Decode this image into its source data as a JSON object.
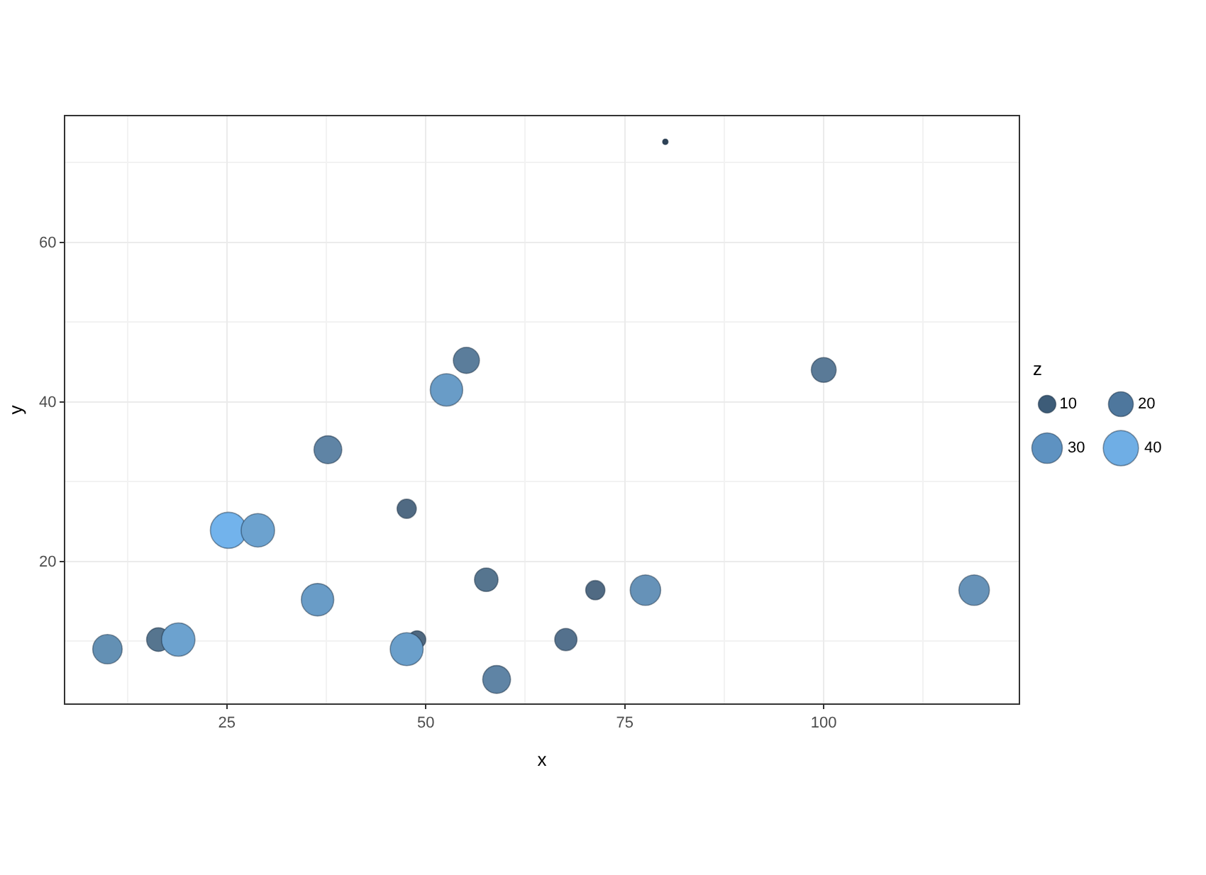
{
  "chart_data": {
    "type": "bubble",
    "xlabel": "x",
    "ylabel": "y",
    "legend_title": "z",
    "grid": true,
    "xlim": [
      4.7,
      124.5
    ],
    "ylim": [
      2.2,
      75.8
    ],
    "xticks": [
      25,
      50,
      75,
      100
    ],
    "yticks": [
      20,
      40,
      60
    ],
    "x": [
      80.1,
      10.0,
      16.4,
      18.9,
      25.2,
      28.9,
      36.4,
      37.7,
      47.6,
      48.9,
      47.6,
      52.6,
      55.1,
      57.6,
      58.9,
      67.6,
      71.3,
      77.6,
      100.0,
      118.9
    ],
    "values": [
      72.6,
      9.0,
      10.2,
      10.2,
      23.9,
      23.9,
      15.2,
      34.0,
      26.6,
      10.2,
      9.0,
      41.5,
      45.2,
      17.7,
      5.2,
      10.2,
      16.4,
      16.4,
      44.0,
      16.4
    ],
    "sizes": [
      1,
      28,
      18,
      36,
      42,
      36,
      34,
      25,
      12,
      10,
      35,
      34,
      22,
      18,
      25,
      16,
      12,
      30,
      20,
      30
    ],
    "size_legend": [
      10,
      20,
      30,
      40
    ],
    "colors": [
      "#2e4358",
      "#6390b4",
      "#56758f",
      "#6ca2cf",
      "#72b3ec",
      "#6ca2cf",
      "#699cc7",
      "#5f84a5",
      "#506a83",
      "#4f6880",
      "#6a9fcb",
      "#699cc7",
      "#5b7d9b",
      "#56758f",
      "#5f84a5",
      "#54718d",
      "#506a83",
      "#6692b8",
      "#5a7a97",
      "#6692b8"
    ]
  }
}
